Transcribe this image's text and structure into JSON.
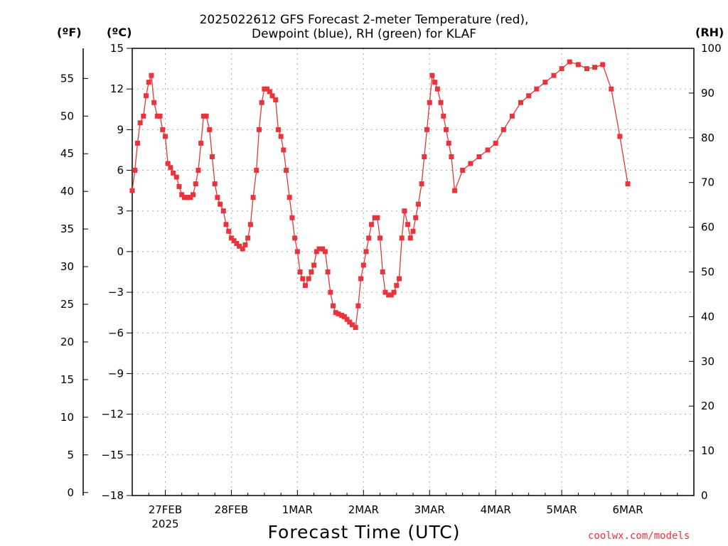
{
  "chart_data": {
    "type": "line",
    "title_line1": "2025022612 GFS Forecast 2-meter Temperature (red),",
    "title_line2": "Dewpoint (blue), RH (green) for KLAF",
    "unit_f": "(ºF)",
    "unit_c": "(ºC)",
    "unit_rh": "(RH)",
    "xlabel": "Forecast Time (UTC)",
    "credit": "coolwx.com/models",
    "xlim": [
      -0.5,
      8
    ],
    "ylim_c": [
      -18,
      15
    ],
    "ylim_rh": [
      0,
      100
    ],
    "grid": true,
    "c_ticks": [
      "15",
      "12",
      "9",
      "6",
      "3",
      "0",
      "−3",
      "−6",
      "−9",
      "−12",
      "−15",
      "−18"
    ],
    "c_tick_values": [
      15,
      12,
      9,
      6,
      3,
      0,
      -3,
      -6,
      -9,
      -12,
      -15,
      -18
    ],
    "f_ticks": [
      "55",
      "50",
      "45",
      "40",
      "35",
      "30",
      "25",
      "20",
      "15",
      "10",
      "5",
      "0"
    ],
    "f_tick_values": [
      55,
      50,
      45,
      40,
      35,
      30,
      25,
      20,
      15,
      10,
      5,
      0
    ],
    "rh_ticks": [
      "100",
      "90",
      "80",
      "70",
      "60",
      "50",
      "40",
      "30",
      "20",
      "10",
      "0"
    ],
    "rh_tick_values": [
      100,
      90,
      80,
      70,
      60,
      50,
      40,
      30,
      20,
      10,
      0
    ],
    "x_ticks": [
      "27FEB",
      "28FEB",
      "1MAR",
      "2MAR",
      "3MAR",
      "4MAR",
      "5MAR",
      "6MAR"
    ],
    "x_tick_values": [
      0,
      1,
      2,
      3,
      4,
      5,
      6,
      7
    ],
    "x_subticks_label": "2025",
    "series": [
      {
        "name": "Temperature (red)",
        "axis": "C",
        "color": "#e8343a",
        "marker": "filled-square",
        "x": [
          -0.5,
          -0.46,
          -0.42,
          -0.38,
          -0.33,
          -0.29,
          -0.25,
          -0.21,
          -0.17,
          -0.12,
          -0.08,
          -0.04,
          0.0,
          0.04,
          0.08,
          0.12,
          0.17,
          0.21,
          0.25,
          0.29,
          0.33,
          0.38,
          0.42,
          0.46,
          0.5,
          0.54,
          0.58,
          0.62,
          0.67,
          0.71,
          0.75,
          0.79,
          0.83,
          0.88,
          0.92,
          0.96,
          1.0,
          1.04,
          1.08,
          1.12,
          1.17,
          1.21,
          1.25,
          1.29,
          1.33,
          1.38,
          1.42,
          1.46,
          1.5,
          1.54,
          1.58,
          1.62,
          1.67,
          1.71,
          1.75,
          1.79,
          1.83,
          1.88,
          1.92,
          1.96,
          2.0,
          2.04,
          2.08,
          2.12,
          2.17,
          2.21,
          2.25,
          2.29,
          2.33,
          2.38,
          2.42,
          2.46,
          2.5,
          2.54,
          2.58,
          2.62,
          2.67,
          2.71,
          2.75,
          2.79,
          2.83,
          2.88,
          2.92,
          2.96,
          3.0,
          3.04,
          3.08,
          3.12,
          3.17,
          3.21,
          3.25,
          3.29,
          3.33,
          3.38,
          3.42,
          3.46,
          3.5,
          3.54,
          3.58,
          3.62,
          3.67,
          3.71,
          3.75,
          3.79,
          3.83,
          3.88,
          3.92,
          3.96,
          4.0,
          4.04,
          4.08,
          4.12,
          4.17,
          4.21,
          4.25,
          4.29,
          4.33,
          4.38,
          4.5,
          4.62,
          4.75,
          4.88,
          5.0,
          5.12,
          5.25,
          5.38,
          5.5,
          5.62,
          5.75,
          5.88,
          6.0,
          6.12,
          6.25,
          6.38,
          6.5,
          6.62,
          6.75,
          6.88,
          7.0
        ],
        "y": [
          4.5,
          6.0,
          8.0,
          9.5,
          10.0,
          11.5,
          12.5,
          13.0,
          11.0,
          10.0,
          10.0,
          9.0,
          8.5,
          6.5,
          6.2,
          5.8,
          5.5,
          4.8,
          4.2,
          4.0,
          4.0,
          4.0,
          4.2,
          5.0,
          6.0,
          8.0,
          10.0,
          10.0,
          9.0,
          7.0,
          5.0,
          4.0,
          3.5,
          3.0,
          2.0,
          1.5,
          1.0,
          0.8,
          0.6,
          0.4,
          0.2,
          0.5,
          1.0,
          2.0,
          4.0,
          6.0,
          9.0,
          11.0,
          12.0,
          12.0,
          11.8,
          11.5,
          11.2,
          9.0,
          8.5,
          7.5,
          6.0,
          4.0,
          2.5,
          1.0,
          0.0,
          -1.5,
          -2.0,
          -2.5,
          -2.0,
          -1.5,
          -1.0,
          0.0,
          0.2,
          0.2,
          0.0,
          -1.5,
          -3.0,
          -4.0,
          -4.5,
          -4.6,
          -4.7,
          -4.8,
          -5.0,
          -5.2,
          -5.4,
          -5.6,
          -4.0,
          -2.0,
          -1.0,
          0.0,
          1.0,
          2.0,
          2.5,
          2.5,
          1.0,
          -1.5,
          -3.0,
          -3.2,
          -3.2,
          -3.0,
          -2.5,
          -2.0,
          1.0,
          3.0,
          2.0,
          1.0,
          1.5,
          2.5,
          3.5,
          5.0,
          7.0,
          9.0,
          11.0,
          13.0,
          12.5,
          12.0,
          11.0,
          10.0,
          9.0,
          8.0,
          7.0,
          4.5,
          6.0,
          6.5,
          7.0,
          7.5,
          8.0,
          9.0,
          10.0,
          11.0,
          11.5,
          12.0,
          12.5,
          13.0,
          13.5,
          14.0,
          13.8,
          13.5,
          13.6,
          13.8,
          12.0,
          8.5,
          5.0
        ],
        "source_note": "read from graph"
      }
    ]
  }
}
